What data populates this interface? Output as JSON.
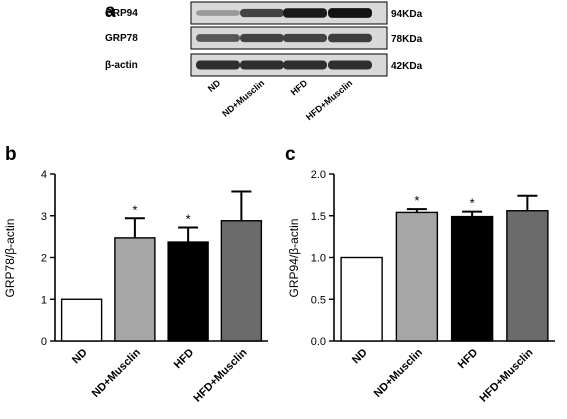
{
  "panel_a": {
    "letter": "a",
    "rows": [
      {
        "name": "GRP94",
        "size": "94KDa",
        "intensities": [
          0.3,
          0.72,
          0.92,
          0.96
        ]
      },
      {
        "name": "GRP78",
        "size": "78KDa",
        "intensities": [
          0.62,
          0.72,
          0.72,
          0.75
        ]
      },
      {
        "name": "β-actin",
        "size": "42KDa",
        "intensities": [
          0.82,
          0.82,
          0.82,
          0.82
        ]
      }
    ],
    "lanes": [
      "ND",
      "ND+Musclin",
      "HFD",
      "HFD+Musclin"
    ]
  },
  "chart_data": [
    {
      "panel": "b",
      "type": "bar",
      "categories": [
        "ND",
        "ND+Musclin",
        "HFD",
        "HFD+Musclin"
      ],
      "values": [
        1.0,
        2.47,
        2.37,
        2.88
      ],
      "errors": [
        0,
        0.47,
        0.35,
        0.7
      ],
      "significance": [
        "",
        "*",
        "*",
        ""
      ],
      "bar_colors": [
        "#ffffff",
        "#a6a6a6",
        "#000000",
        "#6b6b6b"
      ],
      "ylabel": "GRP78/β-actin",
      "ylim": [
        0,
        4
      ],
      "yticks": [
        0,
        1,
        2,
        3,
        4
      ],
      "ytick_labels": [
        "0",
        "1",
        "2",
        "3",
        "4"
      ],
      "grid": false
    },
    {
      "panel": "c",
      "type": "bar",
      "categories": [
        "ND",
        "ND+Musclin",
        "HFD",
        "HFD+Musclin"
      ],
      "values": [
        1.0,
        1.54,
        1.49,
        1.56
      ],
      "errors": [
        0,
        0.04,
        0.06,
        0.18
      ],
      "significance": [
        "",
        "*",
        "*",
        ""
      ],
      "bar_colors": [
        "#ffffff",
        "#a6a6a6",
        "#000000",
        "#6b6b6b"
      ],
      "ylabel": "GRP94/β-actin",
      "ylim": [
        0,
        2.0
      ],
      "yticks": [
        0,
        0.5,
        1.0,
        1.5,
        2.0
      ],
      "ytick_labels": [
        "0.0",
        "0.5",
        "1.0",
        "1.5",
        "2.0"
      ],
      "grid": false
    }
  ]
}
